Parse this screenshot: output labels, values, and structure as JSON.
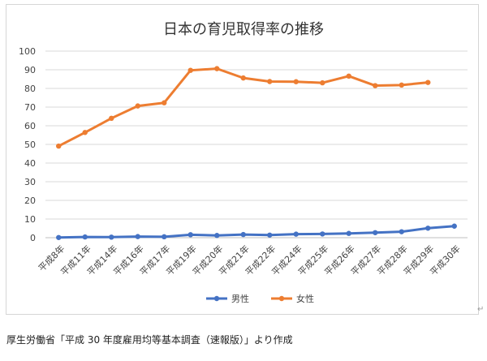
{
  "caption": "厚生労働省「平成 30 年度雇用均等基本調査（速報版）」より作成",
  "para_mark": "↵",
  "chart_data": {
    "type": "line",
    "title": "日本の育児取得率の推移",
    "xlabel": "",
    "ylabel": "",
    "ylim": [
      0,
      100
    ],
    "yticks": [
      0,
      10,
      20,
      30,
      40,
      50,
      60,
      70,
      80,
      90,
      100
    ],
    "grid": true,
    "legend_position": "bottom",
    "categories": [
      "平成8年",
      "平成11年",
      "平成14年",
      "平成16年",
      "平成17年",
      "平成19年",
      "平成20年",
      "平成21年",
      "平成22年",
      "平成24年",
      "平成25年",
      "平成26年",
      "平成27年",
      "平成28年",
      "平成29年",
      "平成30年"
    ],
    "series": [
      {
        "name": "男性",
        "color": "#4472c4",
        "values": [
          0.1,
          0.4,
          0.3,
          0.6,
          0.5,
          1.6,
          1.2,
          1.7,
          1.4,
          1.9,
          2.0,
          2.3,
          2.7,
          3.2,
          5.1,
          6.2
        ]
      },
      {
        "name": "女性",
        "color": "#ed7d31",
        "values": [
          49.1,
          56.4,
          64.0,
          70.6,
          72.3,
          89.7,
          90.6,
          85.6,
          83.7,
          83.6,
          83.0,
          86.6,
          81.5,
          81.8,
          83.2,
          null
        ]
      }
    ]
  }
}
